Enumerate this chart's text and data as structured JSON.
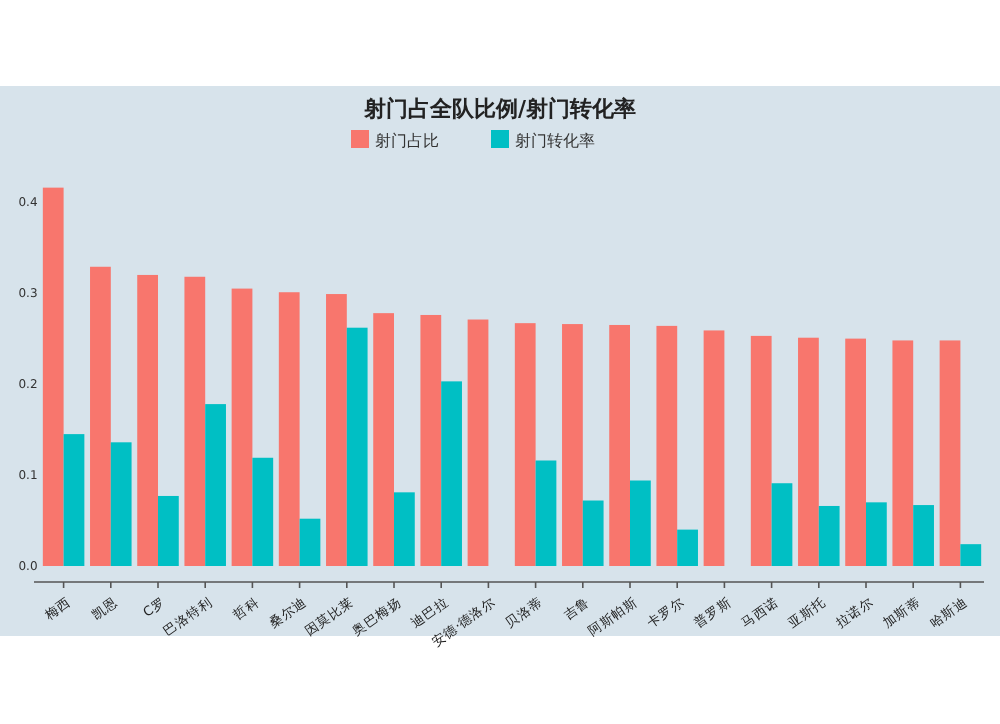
{
  "chart_data": {
    "type": "bar",
    "title": "射门占全队比例/射门转化率",
    "categories": [
      "梅西",
      "凯恩",
      "C罗",
      "巴洛特利",
      "哲科",
      "桑尔迪",
      "因莫比莱",
      "奥巴梅扬",
      "迪巴拉",
      "安德·德洛尔",
      "贝洛蒂",
      "吉鲁",
      "阿斯帕斯",
      "卡罗尔",
      "普罗斯",
      "马西诺",
      "亚斯托",
      "拉诺尔",
      "加斯蒂",
      "哈斯迪"
    ],
    "series": [
      {
        "name": "射门占比",
        "color": "#f8766d",
        "values": [
          0.416,
          0.329,
          0.32,
          0.318,
          0.305,
          0.301,
          0.299,
          0.278,
          0.276,
          0.271,
          0.267,
          0.266,
          0.265,
          0.264,
          0.259,
          0.253,
          0.251,
          0.25,
          0.248,
          0.248
        ]
      },
      {
        "name": "射门转化率",
        "color": "#00bfc4",
        "values": [
          0.145,
          0.136,
          0.077,
          0.178,
          0.119,
          0.052,
          0.262,
          0.081,
          0.203,
          null,
          0.116,
          0.072,
          0.094,
          0.04,
          null,
          0.091,
          0.066,
          0.07,
          0.067,
          0.024
        ]
      }
    ],
    "ylim": [
      0,
      0.42
    ],
    "yticks": [
      {
        "value": 0,
        "label": "0.0"
      },
      0.1,
      0.2,
      0.3,
      0.4
    ],
    "grid": false,
    "legend": "top"
  }
}
